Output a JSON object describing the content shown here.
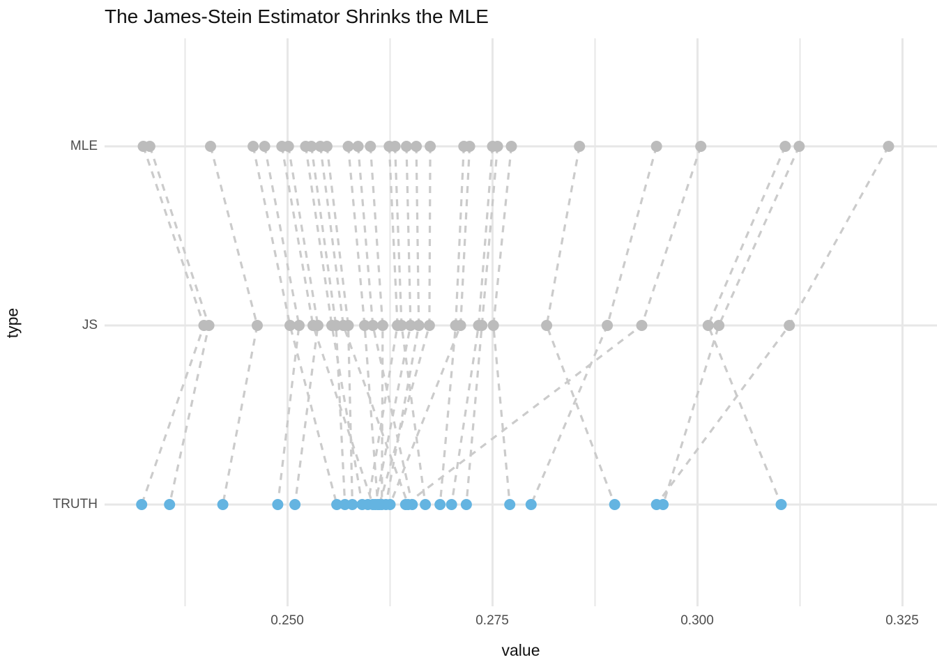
{
  "title": "The James-Stein Estimator Shrinks the MLE",
  "chart_data": {
    "type": "scatter",
    "subtype": "paired-dot-shrinkage-plot",
    "title": "The James-Stein Estimator Shrinks the MLE",
    "xlabel": "value",
    "ylabel": "type",
    "categories": [
      "MLE",
      "JS",
      "TRUTH"
    ],
    "legend": "none",
    "grid": "on",
    "xlim": [
      0.2285,
      0.3293
    ],
    "x_major_ticks": [
      0.25,
      0.275,
      0.3,
      0.325
    ],
    "x_tick_labels": [
      "0.250",
      "0.275",
      "0.300",
      "0.325"
    ],
    "x_minor_ticks": [
      0.2375,
      0.2625,
      0.2875,
      0.3125
    ],
    "connector_style": "dashed",
    "colors": {
      "estimate_point": "#BCBCBC",
      "truth_point": "#64B4E1",
      "connector": "#CBCBCB",
      "gridline": "#E7E7E7",
      "axis_text": "#4d4d4d",
      "title_text": "#111111",
      "background": "#FFFFFF"
    },
    "series_note": "each unit has MLE, JS (james-stein shrunk) and TRUTH values; dashed lines connect MLE-JS-TRUTH per unit",
    "units": [
      {
        "mle": 0.2324,
        "js": 0.2398,
        "truth": 0.2322
      },
      {
        "mle": 0.2332,
        "js": 0.2404,
        "truth": 0.2356
      },
      {
        "mle": 0.2406,
        "js": 0.2463,
        "truth": 0.2421
      },
      {
        "mle": 0.2458,
        "js": 0.2503,
        "truth": 0.256
      },
      {
        "mle": 0.2472,
        "js": 0.2514,
        "truth": 0.2488
      },
      {
        "mle": 0.2493,
        "js": 0.2531,
        "truth": 0.2604
      },
      {
        "mle": 0.2501,
        "js": 0.2537,
        "truth": 0.2509
      },
      {
        "mle": 0.2522,
        "js": 0.2554,
        "truth": 0.2591
      },
      {
        "mle": 0.2529,
        "js": 0.2559,
        "truth": 0.257
      },
      {
        "mle": 0.254,
        "js": 0.2568,
        "truth": 0.2647
      },
      {
        "mle": 0.2548,
        "js": 0.2574,
        "truth": 0.2579
      },
      {
        "mle": 0.2574,
        "js": 0.2594,
        "truth": 0.261
      },
      {
        "mle": 0.2586,
        "js": 0.2604,
        "truth": 0.2652
      },
      {
        "mle": 0.2601,
        "js": 0.2616,
        "truth": 0.2615
      },
      {
        "mle": 0.2624,
        "js": 0.2634,
        "truth": 0.2598
      },
      {
        "mle": 0.2631,
        "js": 0.2639,
        "truth": 0.2668
      },
      {
        "mle": 0.2645,
        "js": 0.265,
        "truth": 0.2607
      },
      {
        "mle": 0.2657,
        "js": 0.266,
        "truth": 0.262
      },
      {
        "mle": 0.2674,
        "js": 0.2673,
        "truth": 0.2612
      },
      {
        "mle": 0.2715,
        "js": 0.2705,
        "truth": 0.2686
      },
      {
        "mle": 0.2722,
        "js": 0.2711,
        "truth": 0.2625
      },
      {
        "mle": 0.275,
        "js": 0.2733,
        "truth": 0.27
      },
      {
        "mle": 0.2756,
        "js": 0.2737,
        "truth": 0.2718
      },
      {
        "mle": 0.2773,
        "js": 0.2751,
        "truth": 0.2771
      },
      {
        "mle": 0.2856,
        "js": 0.2816,
        "truth": 0.2899
      },
      {
        "mle": 0.295,
        "js": 0.289,
        "truth": 0.2797
      },
      {
        "mle": 0.3004,
        "js": 0.2932,
        "truth": 0.2644
      },
      {
        "mle": 0.3107,
        "js": 0.3013,
        "truth": 0.3102
      },
      {
        "mle": 0.3124,
        "js": 0.3026,
        "truth": 0.2958
      },
      {
        "mle": 0.3233,
        "js": 0.3112,
        "truth": 0.295
      }
    ]
  }
}
